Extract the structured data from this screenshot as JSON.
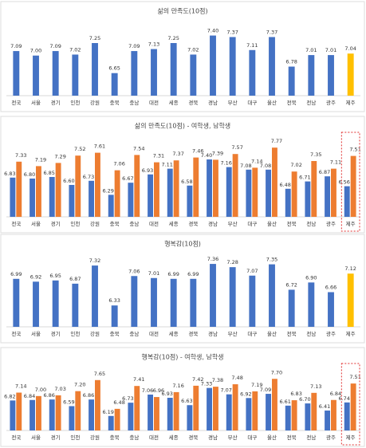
{
  "chart_data": [
    {
      "type": "bar",
      "title": "삶의 만족도(10점)",
      "categories": [
        "전국",
        "서울",
        "경기",
        "인천",
        "강원",
        "충북",
        "충남",
        "대전",
        "세종",
        "경북",
        "경남",
        "부산",
        "대구",
        "울산",
        "전북",
        "전남",
        "광주",
        "제주"
      ],
      "values": [
        7.09,
        7.0,
        7.09,
        7.02,
        7.25,
        6.65,
        7.09,
        7.13,
        7.25,
        7.02,
        7.4,
        7.37,
        7.11,
        7.37,
        6.78,
        7.01,
        7.01,
        7.04
      ],
      "value_labels": [
        "7.09",
        "7.00",
        "7.09",
        "7.02",
        "7.25",
        "6.65",
        "7.09",
        "7.13",
        "7.25",
        "7.02",
        "7.40",
        "7.37",
        "7.11",
        "7.37",
        "6.78",
        "7.01",
        "7.01",
        "7.04"
      ],
      "colors": [
        "#4472c4",
        "#4472c4",
        "#4472c4",
        "#4472c4",
        "#4472c4",
        "#4472c4",
        "#4472c4",
        "#4472c4",
        "#4472c4",
        "#4472c4",
        "#4472c4",
        "#4472c4",
        "#4472c4",
        "#4472c4",
        "#4472c4",
        "#4472c4",
        "#4472c4",
        "#ffc000"
      ],
      "ylim": [
        6.2,
        7.6
      ]
    },
    {
      "type": "bar",
      "title": "삶의 만족도(10점) - 여학생, 남학생",
      "categories": [
        "전국",
        "서울",
        "경기",
        "인천",
        "강원",
        "충북",
        "충남",
        "대전",
        "세종",
        "경북",
        "경남",
        "부산",
        "대구",
        "울산",
        "전북",
        "전남",
        "광주",
        "제주"
      ],
      "series": [
        {
          "color": "#4472c4",
          "values": [
            6.83,
            6.8,
            6.85,
            6.6,
            6.73,
            6.29,
            6.67,
            6.93,
            7.11,
            6.58,
            7.4,
            7.16,
            7.08,
            7.08,
            6.48,
            6.71,
            6.87,
            6.56
          ],
          "value_labels": [
            "6.83",
            "6.80",
            "6.85",
            "6.60",
            "6.73",
            "6.29",
            "6.67",
            "6.93",
            "7.11",
            "6.58",
            "7.40",
            "7.16",
            "7.08",
            "7.08",
            "6.48",
            "6.71",
            "6.87",
            "6.56"
          ]
        },
        {
          "color": "#ed7d31",
          "values": [
            7.33,
            7.19,
            7.29,
            7.52,
            7.61,
            7.06,
            7.54,
            7.31,
            7.37,
            7.46,
            7.39,
            7.57,
            7.14,
            7.77,
            7.02,
            7.35,
            7.11,
            7.51
          ],
          "value_labels": [
            "7.33",
            "7.19",
            "7.29",
            "7.52",
            "7.61",
            "7.06",
            "7.54",
            "7.31",
            "7.37",
            "7.46",
            "7.39",
            "7.57",
            "7.14",
            "7.77",
            "7.02",
            "7.35",
            "7.11",
            "7.51"
          ]
        }
      ],
      "ylim": [
        5.6,
        8.0
      ]
    },
    {
      "type": "bar",
      "title": "행복감(10점)",
      "categories": [
        "전국",
        "서울",
        "경기",
        "인천",
        "강원",
        "충북",
        "충남",
        "대전",
        "세종",
        "경북",
        "경남",
        "부산",
        "대구",
        "울산",
        "전북",
        "전남",
        "광주",
        "제주"
      ],
      "values": [
        6.99,
        6.92,
        6.95,
        6.87,
        7.32,
        6.33,
        7.06,
        7.01,
        6.99,
        6.99,
        7.36,
        7.28,
        7.07,
        7.35,
        6.72,
        6.9,
        6.66,
        7.12
      ],
      "value_labels": [
        "6.99",
        "6.92",
        "6.95",
        "6.87",
        "7.32",
        "6.33",
        "7.06",
        "7.01",
        "6.99",
        "6.99",
        "7.36",
        "7.28",
        "7.07",
        "7.35",
        "6.72",
        "6.90",
        "6.66",
        "7.12"
      ],
      "colors": [
        "#4472c4",
        "#4472c4",
        "#4472c4",
        "#4472c4",
        "#4472c4",
        "#4472c4",
        "#4472c4",
        "#4472c4",
        "#4472c4",
        "#4472c4",
        "#4472c4",
        "#4472c4",
        "#4472c4",
        "#4472c4",
        "#4472c4",
        "#4472c4",
        "#4472c4",
        "#ffc000"
      ],
      "ylim": [
        5.8,
        7.5
      ]
    },
    {
      "type": "bar",
      "title": "행복감(10점) - 여학생, 남학생",
      "categories": [
        "전국",
        "서울",
        "경기",
        "인천",
        "강원",
        "충북",
        "충남",
        "대전",
        "세종",
        "경북",
        "경남",
        "부산",
        "대구",
        "울산",
        "전북",
        "전남",
        "광주",
        "제주"
      ],
      "series": [
        {
          "color": "#4472c4",
          "values": [
            6.82,
            6.84,
            6.86,
            6.59,
            6.86,
            6.19,
            6.73,
            7.06,
            6.93,
            6.63,
            7.33,
            7.07,
            6.92,
            7.09,
            6.61,
            6.7,
            6.41,
            6.74
          ],
          "value_labels": [
            "6.82",
            "6.84",
            "6.86",
            "6.59",
            "6.86",
            "6.19",
            "6.73",
            "7.06",
            "6.93",
            "6.63",
            "7.33",
            "7.07",
            "6.92",
            "7.09",
            "6.61",
            "6.70",
            "6.41",
            "6.74"
          ]
        },
        {
          "color": "#ed7d31",
          "values": [
            7.14,
            7.0,
            7.03,
            7.2,
            7.65,
            6.48,
            7.41,
            6.96,
            7.16,
            7.42,
            7.38,
            7.48,
            7.19,
            7.7,
            6.83,
            7.13,
            6.84,
            7.51
          ],
          "value_labels": [
            "7.14",
            "7.00",
            "7.03",
            "7.20",
            "7.65",
            "6.48",
            "7.41",
            "6.96",
            "7.16",
            "7.42",
            "7.38",
            "7.48",
            "7.19",
            "7.70",
            "6.83",
            "7.13",
            "6.84",
            "7.51"
          ]
        }
      ],
      "ylim": [
        5.6,
        8.0
      ]
    }
  ]
}
